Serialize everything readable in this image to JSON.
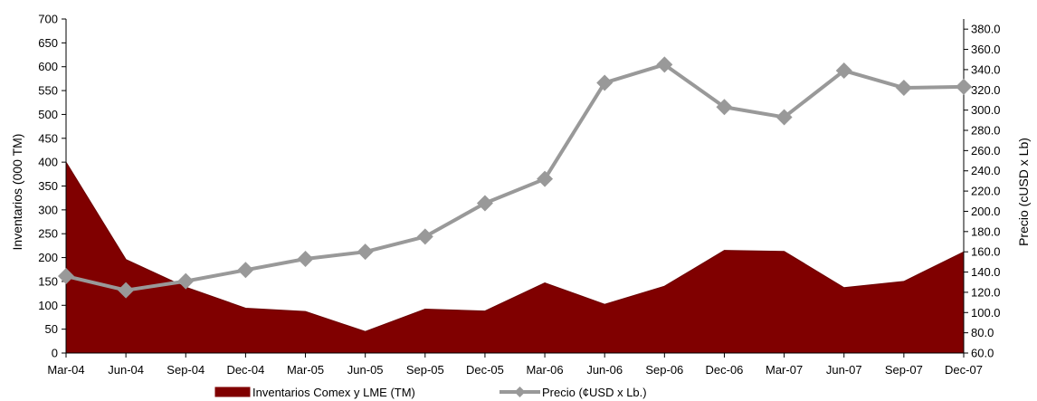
{
  "chart_data": {
    "type": "area",
    "categories": [
      "Mar-04",
      "Jun-04",
      "Sep-04",
      "Dec-04",
      "Mar-05",
      "Jun-05",
      "Sep-05",
      "Dec-05",
      "Mar-06",
      "Jun-06",
      "Sep-06",
      "Dec-06",
      "Mar-07",
      "Jun-07",
      "Sep-07",
      "Dec-07"
    ],
    "ylabel": "Inventarios (000 TM)",
    "y2label": "Precio (cUSD x Lb)",
    "ylim": [
      0,
      700
    ],
    "y2lim": [
      60,
      390
    ],
    "y_ticks": [
      "0",
      "50",
      "100",
      "150",
      "200",
      "250",
      "300",
      "350",
      "400",
      "450",
      "500",
      "550",
      "600",
      "650",
      "700"
    ],
    "y2_ticks": [
      "60.0",
      "80.0",
      "100.0",
      "120.0",
      "140.0",
      "160.0",
      "180.0",
      "200.0",
      "220.0",
      "240.0",
      "260.0",
      "280.0",
      "300.0",
      "320.0",
      "340.0",
      "360.0",
      "380.0"
    ],
    "grid": false,
    "legend_position": "bottom",
    "series": [
      {
        "name": "Inventarios Comex y LME (TM)",
        "type": "area",
        "axis": "left",
        "color": "#800000",
        "values": [
          400,
          196,
          138,
          94,
          87,
          45,
          92,
          88,
          147,
          102,
          140,
          215,
          213,
          137,
          150,
          212
        ]
      },
      {
        "name": "Precio (¢USD x Lb.)",
        "type": "line",
        "axis": "right",
        "color": "#999999",
        "marker": "diamond",
        "values": [
          136,
          122,
          131,
          142,
          153,
          160,
          175,
          208,
          232,
          327,
          345,
          303,
          293,
          339,
          322,
          323
        ]
      }
    ]
  }
}
